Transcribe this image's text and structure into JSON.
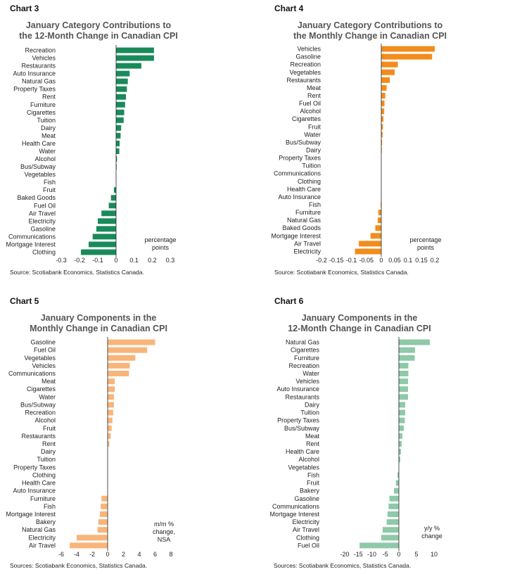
{
  "chart_data": [
    {
      "id": "chart3",
      "type": "bar",
      "orientation": "horizontal",
      "chart_label": "Chart 3",
      "title": [
        "January Category Contributions to",
        "the 12-Month Change in Canadian CPI"
      ],
      "unit_label": [
        "percentage",
        "points"
      ],
      "source": "Source: Scotiabank Economics, Statistics Canada.",
      "color": "#1a8a5a",
      "xlim": [
        -0.3,
        0.3
      ],
      "xticks": [
        -0.3,
        -0.2,
        -0.1,
        0,
        0.1,
        0.2,
        0.3
      ],
      "xtick_labels": [
        "-0.3",
        "-0.2",
        "-0.1",
        "0",
        "0.1",
        "0.2",
        "0.3"
      ],
      "categories": [
        "Recreation",
        "Vehicles",
        "Restaurants",
        "Auto Insurance",
        "Natural Gas",
        "Property Taxes",
        "Rent",
        "Furniture",
        "Cigarettes",
        "Tuition",
        "Dairy",
        "Meat",
        "Health Care",
        "Water",
        "Alcohol",
        "Bus/Subway",
        "Vegetables",
        "Fish",
        "Fruit",
        "Baked Goods",
        "Fuel Oil",
        "Air Travel",
        "Electricity",
        "Gasoline",
        "Communications",
        "Mortgage Interest",
        "Clothing"
      ],
      "values": [
        0.21,
        0.21,
        0.14,
        0.075,
        0.065,
        0.06,
        0.055,
        0.05,
        0.045,
        0.042,
        0.028,
        0.025,
        0.02,
        0.018,
        0.005,
        0.003,
        0.0,
        0.0,
        -0.012,
        -0.028,
        -0.04,
        -0.08,
        -0.1,
        -0.108,
        -0.128,
        -0.15,
        -0.192
      ]
    },
    {
      "id": "chart4",
      "type": "bar",
      "orientation": "horizontal",
      "chart_label": "Chart 4",
      "title": [
        "January Category Contributions to",
        "the Monthly Change in Canadian CPI"
      ],
      "unit_label": [
        "percentage",
        "points"
      ],
      "source": "Source: Scotiabank Economics, Statistics Canada.",
      "color": "#f28c1c",
      "xlim": [
        -0.2,
        0.2
      ],
      "xticks": [
        -0.2,
        -0.15,
        -0.1,
        -0.05,
        0,
        0.05,
        0.1,
        0.15,
        0.2
      ],
      "xtick_labels": [
        "-0.2",
        "-0.15",
        "-0.1",
        "-0.05",
        "0",
        "0.05",
        "0.1",
        "0.15",
        "0.2"
      ],
      "categories": [
        "Vehicles",
        "Gasoline",
        "Recreation",
        "Vegetables",
        "Restaurants",
        "Meat",
        "Rent",
        "Fuel Oil",
        "Alcohol",
        "Cigarettes",
        "Fruit",
        "Water",
        "Bus/Subway",
        "Dairy",
        "Property Taxes",
        "Tuition",
        "Communications",
        "Clothing",
        "Health Care",
        "Auto Insurance",
        "Fish",
        "Furniture",
        "Natural Gas",
        "Baked Goods",
        "Mortgage Interest",
        "Air Travel",
        "Electricity"
      ],
      "values": [
        0.2,
        0.19,
        0.062,
        0.05,
        0.032,
        0.02,
        0.015,
        0.012,
        0.011,
        0.008,
        0.006,
        0.005,
        0.003,
        0.002,
        0.0,
        0.0,
        0.0,
        0.0,
        0.0,
        -0.001,
        -0.002,
        -0.01,
        -0.012,
        -0.02,
        -0.036,
        -0.075,
        -0.088
      ]
    },
    {
      "id": "chart5",
      "type": "bar",
      "orientation": "horizontal",
      "chart_label": "Chart 5",
      "title": [
        "January Components in the",
        "Monthly Change in Canadian CPI"
      ],
      "unit_label": [
        "m/m %",
        "change,",
        "NSA"
      ],
      "source": "Sources: Scotiabank Economics, Statistics Canada.",
      "color": "#f9b47a",
      "xlim": [
        -6,
        8
      ],
      "xticks": [
        -6,
        -4,
        -2,
        0,
        2,
        4,
        6,
        8
      ],
      "xtick_labels": [
        "-6",
        "-4",
        "-2",
        "0",
        "2",
        "4",
        "6",
        "8"
      ],
      "categories": [
        "Gasoline",
        "Fuel Oil",
        "Vegetables",
        "Vehicles",
        "Communications",
        "Meat",
        "Cigarettes",
        "Water",
        "Bus/Subway",
        "Recreation",
        "Alcohol",
        "Fruit",
        "Restaurants",
        "Rent",
        "Dairy",
        "Tuition",
        "Property Taxes",
        "Clothing",
        "Health Care",
        "Auto Insurance",
        "Furniture",
        "Fish",
        "Mortgage Interest",
        "Bakery",
        "Natural Gas",
        "Electricity",
        "Air Travel"
      ],
      "values": [
        6.0,
        5.0,
        3.5,
        2.8,
        2.7,
        0.9,
        0.9,
        0.8,
        0.8,
        0.7,
        0.6,
        0.5,
        0.4,
        0.2,
        0.0,
        0.0,
        0.0,
        0.0,
        0.0,
        0.0,
        -0.8,
        -0.9,
        -1.0,
        -1.2,
        -1.3,
        -4.0,
        -4.9
      ]
    },
    {
      "id": "chart6",
      "type": "bar",
      "orientation": "horizontal",
      "chart_label": "Chart 6",
      "title": [
        "January Components in the",
        "12-Month Change in Canadian CPI"
      ],
      "unit_label": [
        "y/y %",
        "change"
      ],
      "source": "Sources: Scotiabank Economics, Statistics Canada.",
      "color": "#8ec9a8",
      "xlim": [
        -20,
        10
      ],
      "xticks": [
        -20,
        -15,
        -10,
        -5,
        0,
        5,
        10
      ],
      "xtick_labels": [
        "-20",
        "-15",
        "-10",
        "-5",
        "0",
        "5",
        "10"
      ],
      "categories": [
        "Natural Gas",
        "Cigarettes",
        "Furniture",
        "Recreation",
        "Water",
        "Vehicles",
        "Auto Insurance",
        "Restaurants",
        "Dairy",
        "Tuition",
        "Property Taxes",
        "Bus/Subway",
        "Meat",
        "Rent",
        "Health Care",
        "Alcohol",
        "Vegetables",
        "Fish",
        "Fruit",
        "Bakery",
        "Gasoline",
        "Communications",
        "Mortgage Interest",
        "Electricity",
        "Air Travel",
        "Clothing",
        "Fuel Oil"
      ],
      "values": [
        8.8,
        4.6,
        4.5,
        2.7,
        2.7,
        2.6,
        2.6,
        2.6,
        1.8,
        1.8,
        1.7,
        1.4,
        1.0,
        0.8,
        0.6,
        0.4,
        0.0,
        -0.5,
        -1.1,
        -1.8,
        -3.5,
        -3.8,
        -4.2,
        -4.5,
        -6.0,
        -6.5,
        -14.5
      ]
    }
  ]
}
